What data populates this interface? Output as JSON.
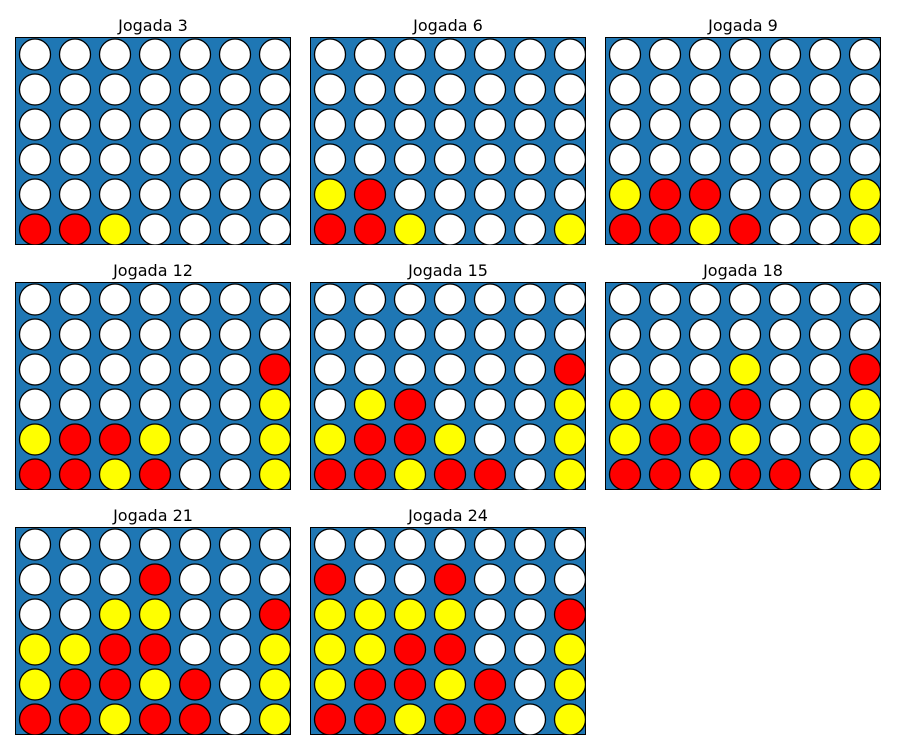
{
  "colors": {
    "board": "#1f77b4",
    "empty": "#ffffff",
    "red": "#ff0000",
    "yellow": "#ffff00",
    "outline": "#000000"
  },
  "boards": [
    {
      "title": "Jogada 3",
      "grid": [
        ".......",
        ".......",
        ".......",
        ".......",
        ".......",
        "RRY...."
      ]
    },
    {
      "title": "Jogada 6",
      "grid": [
        ".......",
        ".......",
        ".......",
        ".......",
        "YR.....",
        "RRY...Y"
      ]
    },
    {
      "title": "Jogada 9",
      "grid": [
        ".......",
        ".......",
        ".......",
        ".......",
        "YRR...Y",
        "RRYR..Y"
      ]
    },
    {
      "title": "Jogada 12",
      "grid": [
        ".......",
        ".......",
        "......R",
        "......Y",
        "YRRY..Y",
        "RRYR..Y"
      ]
    },
    {
      "title": "Jogada 15",
      "grid": [
        ".......",
        ".......",
        "......R",
        ".YR...Y",
        "YRRY..Y",
        "RRYRR.Y"
      ]
    },
    {
      "title": "Jogada 18",
      "grid": [
        ".......",
        ".......",
        "...Y..R",
        "YYRR..Y",
        "YRRY..Y",
        "RRYRR.Y"
      ]
    },
    {
      "title": "Jogada 21",
      "grid": [
        ".......",
        "...R...",
        "..YY..R",
        "YYRR..Y",
        "YRRYR.Y",
        "RRYRR.Y"
      ]
    },
    {
      "title": "Jogada 24",
      "grid": [
        ".......",
        "R..R...",
        "YYYY..R",
        "YYRR..Y",
        "YRRYR.Y",
        "RRYRR.Y"
      ]
    }
  ]
}
